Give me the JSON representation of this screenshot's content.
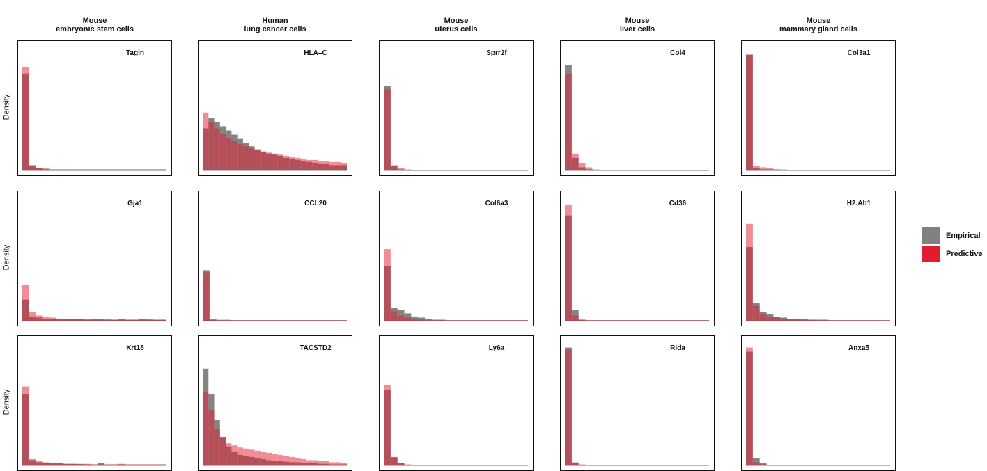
{
  "columns": [
    "Mouse\nembryonic stem cells",
    "Human\nlung cancer cells",
    "Mouse\nuterus cells",
    "Mouse\nliver cells",
    "Mouse\nmammary gland cells"
  ],
  "row_ylabel": "Density",
  "legend": {
    "items": [
      {
        "label": "Empirical",
        "color": "#6e6e6e"
      },
      {
        "label": "Predictive",
        "color": "#e31b2e"
      }
    ]
  },
  "colors": {
    "empirical": "#6e6e6e",
    "predictive": "#e31b2e",
    "overlap": "#a0303c"
  },
  "chart_data": {
    "type": "bar",
    "subtype": "overlaid-histograms",
    "ylabel": "Density",
    "ylim": [
      0,
      1
    ],
    "grid": false,
    "legend_position": "right",
    "series_names": [
      "Empirical",
      "Predictive"
    ],
    "panels": [
      {
        "column": 0,
        "row": 0,
        "gene": "Tagln",
        "empirical": [
          0.92,
          0.05,
          0.02,
          0.01,
          0.01,
          0.01,
          0.01,
          0.01,
          0.01,
          0.01,
          0.01,
          0.01,
          0.01,
          0.01,
          0.01,
          0.01,
          0.01,
          0.01,
          0.01,
          0.01,
          0.01
        ],
        "predictive": [
          0.98,
          0.04,
          0.02,
          0.02,
          0.01,
          0.01,
          0.01,
          0.01,
          0.01,
          0.01,
          0.01,
          0.01,
          0.01,
          0.01,
          0.01,
          0.01,
          0.01,
          0.01,
          0.01,
          0.01,
          0.01
        ]
      },
      {
        "column": 1,
        "row": 0,
        "gene": "HLA–C",
        "empirical": [
          0.4,
          0.5,
          0.46,
          0.42,
          0.38,
          0.34,
          0.3,
          0.26,
          0.23,
          0.2,
          0.18,
          0.16,
          0.15,
          0.14,
          0.12,
          0.11,
          0.1,
          0.09,
          0.08,
          0.07,
          0.06,
          0.06,
          0.05,
          0.05,
          0.05
        ],
        "predictive": [
          0.55,
          0.46,
          0.4,
          0.35,
          0.31,
          0.28,
          0.25,
          0.23,
          0.21,
          0.2,
          0.18,
          0.17,
          0.16,
          0.15,
          0.14,
          0.13,
          0.12,
          0.11,
          0.1,
          0.1,
          0.09,
          0.09,
          0.08,
          0.08,
          0.07
        ]
      },
      {
        "column": 2,
        "row": 0,
        "gene": "Sprr2f",
        "empirical": [
          0.8,
          0.04,
          0.01,
          0.005,
          0.005,
          0.005,
          0.005,
          0.005,
          0.005,
          0.005,
          0.005,
          0.005,
          0.005,
          0.005,
          0.005,
          0.005,
          0.005,
          0.005,
          0.005,
          0.005,
          0.005
        ],
        "predictive": [
          0.77,
          0.05,
          0.02,
          0.01,
          0.005,
          0.005,
          0.005,
          0.005,
          0.005,
          0.005,
          0.005,
          0.005,
          0.005,
          0.005,
          0.005,
          0.005,
          0.005,
          0.005,
          0.005,
          0.005,
          0.005
        ]
      },
      {
        "column": 3,
        "row": 0,
        "gene": "Col4",
        "empirical": [
          1.0,
          0.12,
          0.03,
          0.01,
          0.005,
          0.005,
          0.005,
          0.005,
          0.005,
          0.005,
          0.005,
          0.005,
          0.005,
          0.005,
          0.005,
          0.005,
          0.005,
          0.005,
          0.005,
          0.005,
          0.005
        ],
        "predictive": [
          0.92,
          0.16,
          0.07,
          0.03,
          0.01,
          0.005,
          0.005,
          0.005,
          0.005,
          0.005,
          0.005,
          0.005,
          0.005,
          0.005,
          0.005,
          0.005,
          0.005,
          0.005,
          0.005,
          0.005,
          0.005
        ]
      },
      {
        "column": 4,
        "row": 0,
        "gene": "Col3a1",
        "empirical": [
          1.1,
          0.02,
          0.01,
          0.01,
          0.01,
          0.005,
          0.005,
          0.005,
          0.005,
          0.005,
          0.005,
          0.005,
          0.005,
          0.005,
          0.005,
          0.005,
          0.005,
          0.005,
          0.005,
          0.005,
          0.005
        ],
        "predictive": [
          1.1,
          0.04,
          0.03,
          0.02,
          0.01,
          0.01,
          0.005,
          0.005,
          0.005,
          0.005,
          0.005,
          0.005,
          0.005,
          0.005,
          0.005,
          0.005,
          0.005,
          0.005,
          0.005,
          0.005,
          0.005
        ]
      },
      {
        "column": 0,
        "row": 1,
        "gene": "Gja1",
        "empirical": [
          0.2,
          0.04,
          0.03,
          0.02,
          0.02,
          0.02,
          0.015,
          0.015,
          0.015,
          0.01,
          0.015,
          0.015,
          0.01,
          0.01,
          0.015,
          0.01,
          0.01,
          0.015,
          0.01,
          0.01,
          0.01
        ],
        "predictive": [
          0.34,
          0.08,
          0.05,
          0.04,
          0.03,
          0.02,
          0.02,
          0.02,
          0.015,
          0.015,
          0.01,
          0.01,
          0.015,
          0.01,
          0.01,
          0.01,
          0.01,
          0.01,
          0.015,
          0.01,
          0.01
        ]
      },
      {
        "column": 1,
        "row": 1,
        "gene": "CCL20",
        "empirical": [
          0.48,
          0.01,
          0.005,
          0.005,
          0.005,
          0.005,
          0.005,
          0.005,
          0.005,
          0.005,
          0.005,
          0.005,
          0.005,
          0.005,
          0.005,
          0.005,
          0.005,
          0.005,
          0.005,
          0.005,
          0.005
        ],
        "predictive": [
          0.46,
          0.02,
          0.01,
          0.01,
          0.005,
          0.005,
          0.005,
          0.005,
          0.005,
          0.005,
          0.005,
          0.005,
          0.005,
          0.005,
          0.005,
          0.005,
          0.005,
          0.005,
          0.005,
          0.005,
          0.005
        ]
      },
      {
        "column": 2,
        "row": 1,
        "gene": "Col6a3",
        "empirical": [
          0.52,
          0.12,
          0.1,
          0.07,
          0.04,
          0.03,
          0.02,
          0.01,
          0.01,
          0.005,
          0.005,
          0.005,
          0.005,
          0.005,
          0.005,
          0.005,
          0.005,
          0.005,
          0.005,
          0.005,
          0.005
        ],
        "predictive": [
          0.68,
          0.09,
          0.05,
          0.03,
          0.02,
          0.01,
          0.005,
          0.005,
          0.005,
          0.005,
          0.005,
          0.005,
          0.005,
          0.005,
          0.005,
          0.005,
          0.005,
          0.005,
          0.005,
          0.005,
          0.005
        ]
      },
      {
        "column": 3,
        "row": 1,
        "gene": "Cd36",
        "empirical": [
          1.0,
          0.1,
          0.01,
          0.005,
          0.005,
          0.005,
          0.005,
          0.005,
          0.005,
          0.005,
          0.005,
          0.005,
          0.005,
          0.005,
          0.005,
          0.005,
          0.005,
          0.005,
          0.005,
          0.005,
          0.005
        ],
        "predictive": [
          1.1,
          0.05,
          0.01,
          0.005,
          0.005,
          0.005,
          0.005,
          0.005,
          0.005,
          0.005,
          0.005,
          0.005,
          0.005,
          0.005,
          0.005,
          0.005,
          0.005,
          0.005,
          0.005,
          0.005,
          0.005
        ]
      },
      {
        "column": 4,
        "row": 1,
        "gene": "H2.Ab1",
        "empirical": [
          0.7,
          0.17,
          0.08,
          0.06,
          0.04,
          0.03,
          0.02,
          0.02,
          0.015,
          0.01,
          0.01,
          0.01,
          0.005,
          0.005,
          0.005,
          0.005,
          0.005,
          0.005,
          0.005,
          0.005,
          0.005
        ],
        "predictive": [
          0.92,
          0.14,
          0.06,
          0.04,
          0.03,
          0.02,
          0.015,
          0.01,
          0.01,
          0.01,
          0.005,
          0.005,
          0.005,
          0.005,
          0.005,
          0.005,
          0.005,
          0.005,
          0.005,
          0.005,
          0.005
        ]
      },
      {
        "column": 0,
        "row": 2,
        "gene": "Krt18",
        "empirical": [
          0.68,
          0.05,
          0.03,
          0.02,
          0.02,
          0.02,
          0.015,
          0.015,
          0.015,
          0.01,
          0.01,
          0.02,
          0.01,
          0.01,
          0.01,
          0.01,
          0.01,
          0.01,
          0.01,
          0.01,
          0.01
        ],
        "predictive": [
          0.75,
          0.06,
          0.04,
          0.03,
          0.02,
          0.02,
          0.015,
          0.015,
          0.01,
          0.015,
          0.01,
          0.01,
          0.01,
          0.01,
          0.015,
          0.01,
          0.01,
          0.01,
          0.01,
          0.01,
          0.01
        ]
      },
      {
        "column": 1,
        "row": 2,
        "gene": "TACSTD2",
        "empirical": [
          0.92,
          0.68,
          0.43,
          0.27,
          0.18,
          0.13,
          0.1,
          0.09,
          0.08,
          0.07,
          0.06,
          0.05,
          0.045,
          0.04,
          0.035,
          0.03,
          0.03,
          0.025,
          0.02,
          0.02,
          0.015,
          0.015,
          0.01,
          0.01,
          0.01
        ],
        "predictive": [
          0.7,
          0.53,
          0.35,
          0.27,
          0.21,
          0.19,
          0.17,
          0.16,
          0.15,
          0.14,
          0.13,
          0.12,
          0.11,
          0.1,
          0.09,
          0.08,
          0.07,
          0.06,
          0.05,
          0.05,
          0.04,
          0.04,
          0.03,
          0.03,
          0.02
        ]
      },
      {
        "column": 2,
        "row": 2,
        "gene": "Ly6a",
        "empirical": [
          0.72,
          0.08,
          0.02,
          0.005,
          0.005,
          0.005,
          0.005,
          0.005,
          0.005,
          0.005,
          0.005,
          0.005,
          0.005,
          0.005,
          0.005,
          0.005,
          0.005,
          0.005,
          0.005,
          0.005,
          0.005
        ],
        "predictive": [
          0.76,
          0.07,
          0.02,
          0.01,
          0.005,
          0.005,
          0.005,
          0.005,
          0.005,
          0.005,
          0.005,
          0.005,
          0.005,
          0.005,
          0.005,
          0.005,
          0.005,
          0.005,
          0.005,
          0.005,
          0.005
        ]
      },
      {
        "column": 3,
        "row": 2,
        "gene": "Rida",
        "empirical": [
          1.12,
          0.02,
          0.005,
          0.005,
          0.005,
          0.005,
          0.005,
          0.005,
          0.005,
          0.005,
          0.005,
          0.005,
          0.005,
          0.005,
          0.005,
          0.005,
          0.005,
          0.005,
          0.005,
          0.005,
          0.005
        ],
        "predictive": [
          1.1,
          0.03,
          0.01,
          0.005,
          0.005,
          0.005,
          0.005,
          0.005,
          0.005,
          0.005,
          0.005,
          0.005,
          0.005,
          0.005,
          0.005,
          0.005,
          0.005,
          0.005,
          0.005,
          0.005,
          0.005
        ]
      },
      {
        "column": 4,
        "row": 2,
        "gene": "Anxa5",
        "empirical": [
          1.08,
          0.07,
          0.02,
          0.005,
          0.005,
          0.005,
          0.005,
          0.005,
          0.005,
          0.005,
          0.005,
          0.005,
          0.005,
          0.005,
          0.005,
          0.005,
          0.005,
          0.005,
          0.005,
          0.005,
          0.005
        ],
        "predictive": [
          1.12,
          0.03,
          0.01,
          0.005,
          0.005,
          0.005,
          0.005,
          0.005,
          0.005,
          0.005,
          0.005,
          0.005,
          0.005,
          0.005,
          0.005,
          0.005,
          0.005,
          0.005,
          0.005,
          0.005,
          0.005
        ]
      }
    ]
  }
}
